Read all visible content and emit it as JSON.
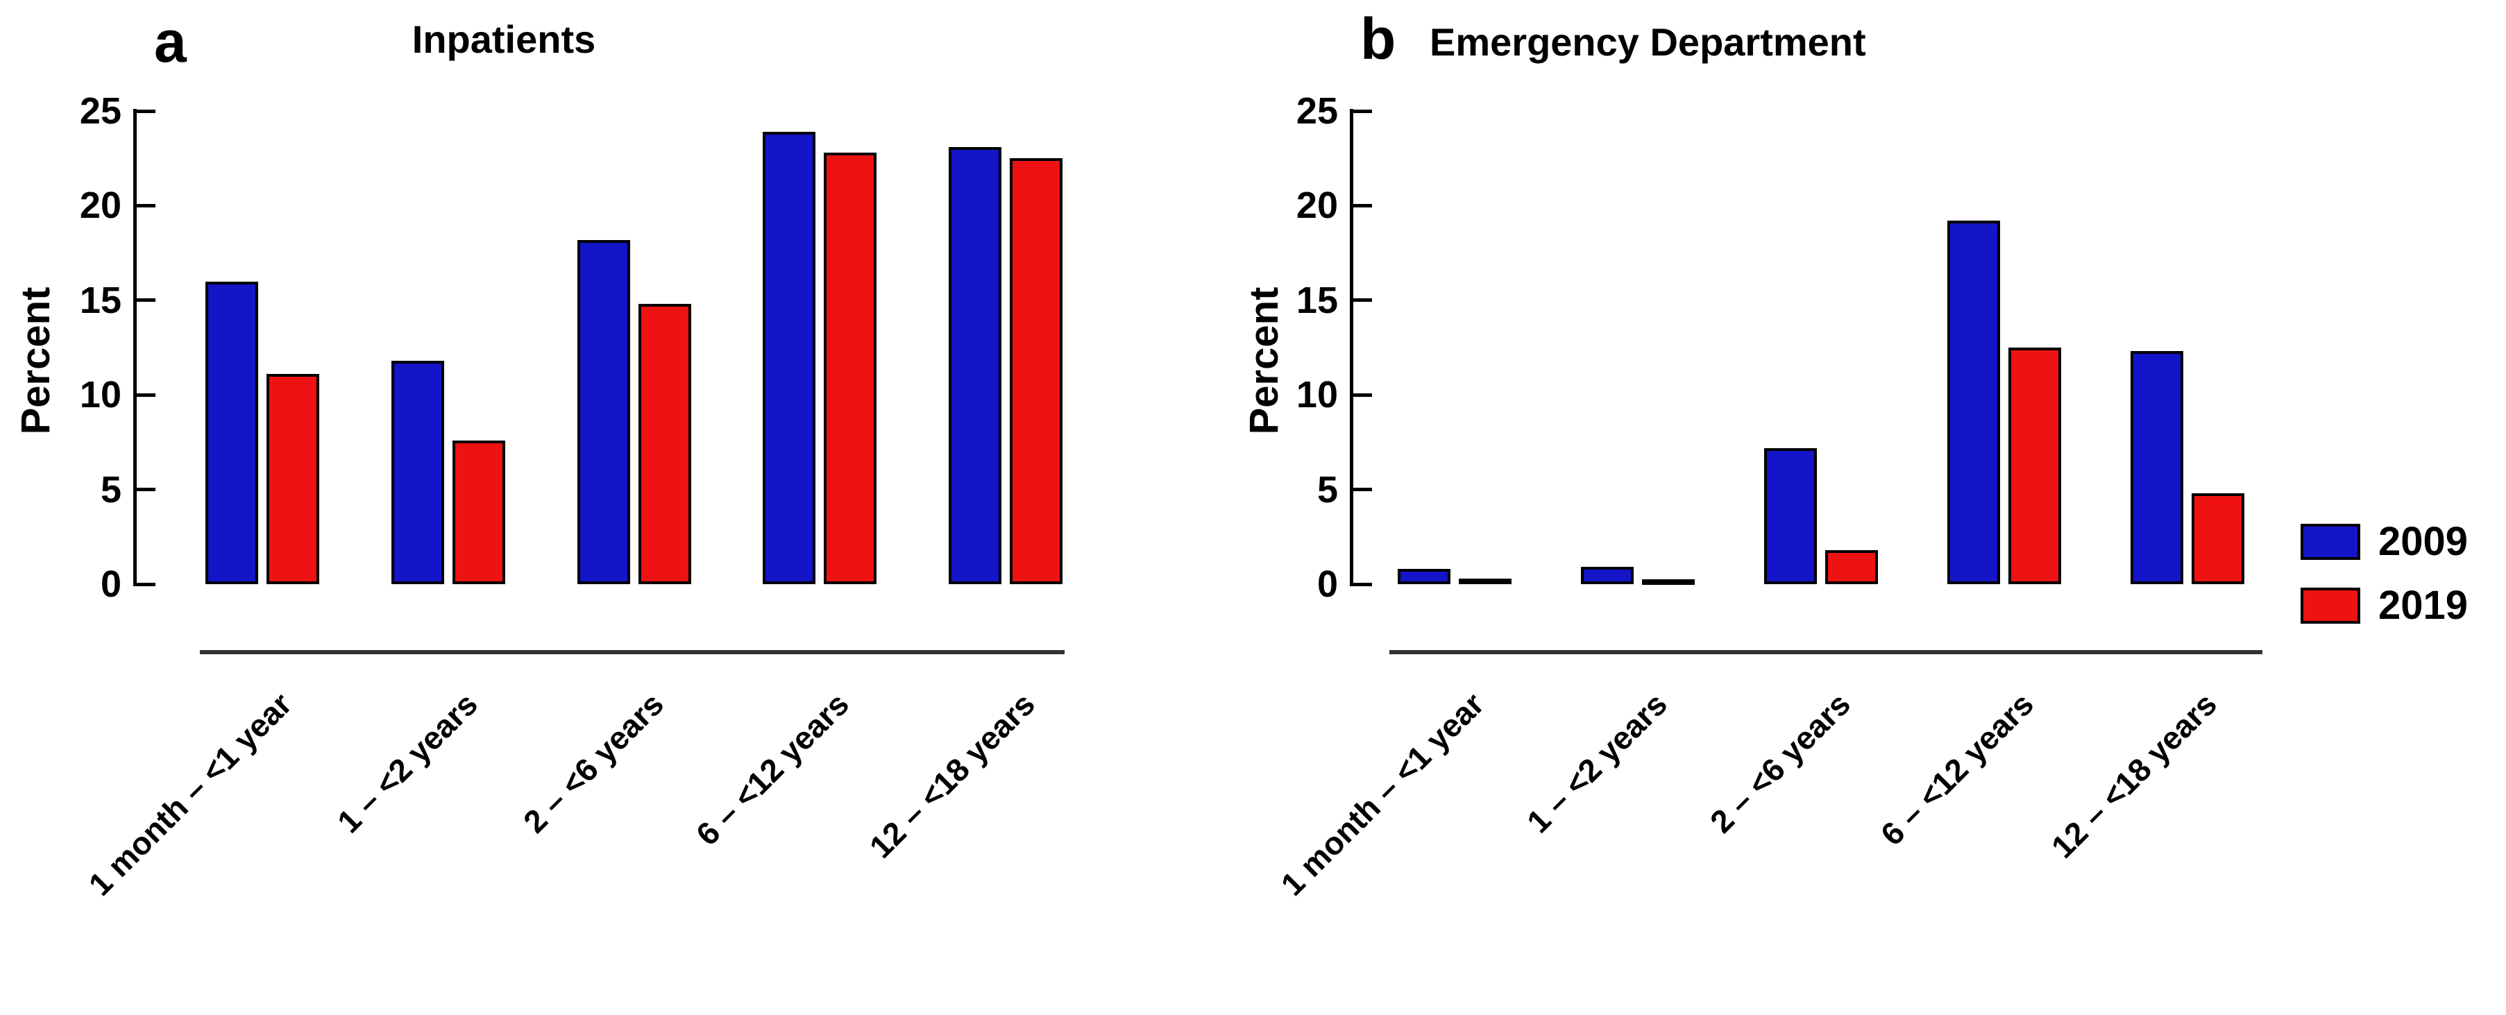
{
  "figure": {
    "background": "#ffffff",
    "text_color": "#000000",
    "bar_border_color": "#000000",
    "axis_color": "#000000",
    "separator_color": "#333333"
  },
  "legend": {
    "entries": [
      {
        "label": "2009",
        "color": "#1414C8"
      },
      {
        "label": "2019",
        "color": "#EE1212"
      }
    ]
  },
  "chart_data": [
    {
      "type": "bar",
      "panel_letter": "a",
      "title": "Inpatients",
      "ylabel": "Percent",
      "xlabel": "",
      "ylim": [
        0,
        25
      ],
      "yticks": [
        0,
        5,
        10,
        15,
        20,
        25
      ],
      "grid": false,
      "legend_position": "none",
      "categories": [
        "1 month – <1 year",
        "1 – <2 years",
        "2 – <6 years",
        "6 – <12 years",
        "12 – <18 years"
      ],
      "series": [
        {
          "name": "2009",
          "color": "#1414C8",
          "values": [
            16.0,
            11.8,
            18.2,
            23.9,
            23.1
          ]
        },
        {
          "name": "2019",
          "color": "#EE1212",
          "values": [
            11.1,
            7.6,
            14.8,
            22.8,
            22.5
          ]
        }
      ]
    },
    {
      "type": "bar",
      "panel_letter": "b",
      "title": "Emergency Department",
      "ylabel": "Percent",
      "xlabel": "",
      "ylim": [
        0,
        25
      ],
      "yticks": [
        0,
        5,
        10,
        15,
        20,
        25
      ],
      "grid": false,
      "legend_position": "right",
      "categories": [
        "1 month – <1 year",
        "1 – <2 years",
        "2 – <6 years",
        "6 – <12 years",
        "12 – <18 years"
      ],
      "series": [
        {
          "name": "2009",
          "color": "#1414C8",
          "values": [
            0.8,
            0.9,
            7.2,
            19.2,
            12.3
          ]
        },
        {
          "name": "2019",
          "color": "#EE1212",
          "values": [
            0.3,
            0.1,
            1.8,
            12.5,
            4.8
          ]
        }
      ]
    }
  ]
}
